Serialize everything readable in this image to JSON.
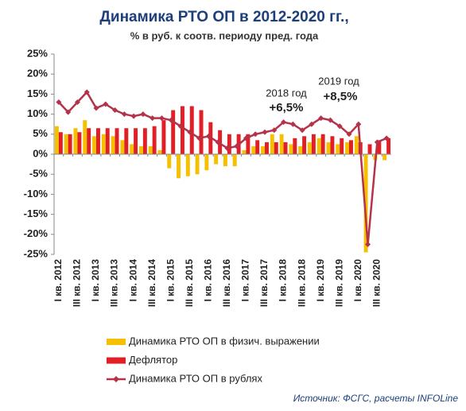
{
  "chart_data": {
    "type": "bar_line",
    "title": "Динамика РТО ОП в 2012-2020 гг.,",
    "subtitle": "% в руб. к соотв. периоду пред. года",
    "source": "Источник: ФСГС, расчеты INFOLine",
    "categories": [
      "I кв. 2012",
      null,
      "III кв. 2012",
      null,
      "I кв. 2013",
      null,
      "III кв. 2013",
      null,
      "I кв. 2014",
      null,
      "III кв. 2014",
      null,
      "I кв. 2015",
      null,
      "III кв. 2015",
      null,
      "I кв. 2016",
      null,
      "III кв. 2016",
      null,
      "I кв. 2017",
      null,
      "III кв. 2017",
      null,
      "I кв. 2018",
      null,
      "III кв. 2018",
      null,
      "I кв. 2019",
      null,
      "III кв. 2019",
      null,
      "I кв. 2020",
      null,
      "III кв. 2020",
      null
    ],
    "series": [
      {
        "name": "Динамика РТО ОП в физич. выражении",
        "kind": "bar",
        "color": "#f5c000",
        "values": [
          7,
          5,
          6.5,
          8.5,
          4.5,
          5,
          4.5,
          3.5,
          2.5,
          2,
          2,
          1,
          -3.5,
          -6,
          -5.5,
          -5,
          -4,
          -2.5,
          -3,
          -3,
          1,
          2,
          2,
          5,
          5,
          2.5,
          2,
          3,
          4,
          3,
          2.5,
          3,
          4.5,
          -24.5,
          -1.5,
          -1.5
        ]
      },
      {
        "name": "Дефлятор",
        "kind": "bar",
        "color": "#e01f26",
        "values": [
          5.5,
          5,
          5.5,
          6.5,
          6.5,
          6.5,
          6.5,
          6.5,
          6.5,
          6.5,
          7,
          8.5,
          11,
          12,
          12,
          11,
          8,
          6,
          5,
          5,
          5,
          3.5,
          3,
          3,
          3,
          4,
          4.5,
          5,
          5,
          4.5,
          4,
          3.5,
          3,
          2.5,
          3.5,
          4
        ]
      },
      {
        "name": "Динамика РТО ОП в рублях",
        "kind": "line",
        "color": "#b5334a",
        "values": [
          13,
          10.5,
          13,
          15.5,
          11.5,
          12.5,
          11,
          10,
          9.5,
          10,
          9,
          9,
          8.5,
          7,
          5.5,
          4,
          4.5,
          3,
          1.5,
          2,
          4,
          5,
          5.5,
          6,
          8,
          7.5,
          6,
          7.5,
          9,
          8.5,
          7,
          5,
          7.5,
          -22.5,
          3,
          4
        ]
      }
    ],
    "annotations": [
      {
        "text": "2018 год",
        "bold": "+6,5%"
      },
      {
        "text": "2019 год",
        "bold": "+8,5%"
      }
    ],
    "ylim": [
      -25,
      25
    ],
    "yticks": [
      {
        "value": -25,
        "label": "-25%"
      },
      {
        "value": -20,
        "label": "-20%"
      },
      {
        "value": -15,
        "label": "-15%"
      },
      {
        "value": -10,
        "label": "-10%"
      },
      {
        "value": -5,
        "label": "-5%"
      },
      {
        "value": 0,
        "label": "0%"
      },
      {
        "value": 5,
        "label": "5%"
      },
      {
        "value": 10,
        "label": "10%"
      },
      {
        "value": 15,
        "label": "15%"
      },
      {
        "value": 20,
        "label": "20%"
      },
      {
        "value": 25,
        "label": "25%"
      }
    ],
    "grid": false,
    "legend": "bottom-left"
  }
}
